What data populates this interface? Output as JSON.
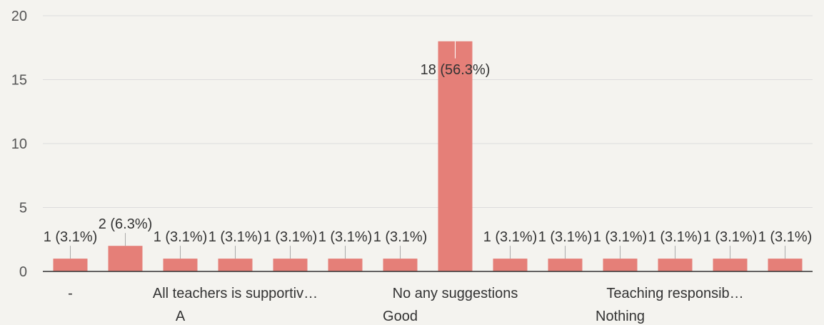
{
  "colors": {
    "bar": "#e57f78",
    "grid": "#dcdcdc",
    "axis": "#333333",
    "tick_text": "#555555",
    "label_text": "#333333",
    "leader": "#aaaaaa"
  },
  "chart_data": {
    "type": "bar",
    "categories": [
      "-",
      "",
      "",
      "",
      "",
      "",
      "",
      "",
      "",
      "",
      "",
      "",
      "",
      ""
    ],
    "x_tick_labels": [
      {
        "index": 0,
        "text": "-",
        "row": 1
      },
      {
        "index": 3,
        "text": "All teachers is supportiv…",
        "row": 1
      },
      {
        "index": 7,
        "text": "No any suggestions",
        "row": 1
      },
      {
        "index": 11,
        "text": "Teaching responsib…",
        "row": 1
      },
      {
        "index": 2,
        "text": "A",
        "row": 2
      },
      {
        "index": 6,
        "text": "Good",
        "row": 2
      },
      {
        "index": 10,
        "text": "Nothing",
        "row": 2
      }
    ],
    "values": [
      1,
      2,
      1,
      1,
      1,
      1,
      1,
      18,
      1,
      1,
      1,
      1,
      1,
      1
    ],
    "data_labels": [
      "1 (3.1%)",
      "2 (6.3%)",
      "1 (3.1%)",
      "1 (3.1%)",
      "1 (3.1%)",
      "1 (3.1%)",
      "1 (3.1%)",
      "18 (56.3%)",
      "1 (3.1%)",
      "1 (3.1%)",
      "1 (3.1%)",
      "1 (3.1%)",
      "1 (3.1%)",
      "1 (3.1%)"
    ],
    "y_ticks": [
      0,
      5,
      10,
      15,
      20
    ],
    "ylim": [
      0,
      20
    ],
    "grid": true,
    "legend": "none",
    "title": "",
    "xlabel": "",
    "ylabel": ""
  }
}
